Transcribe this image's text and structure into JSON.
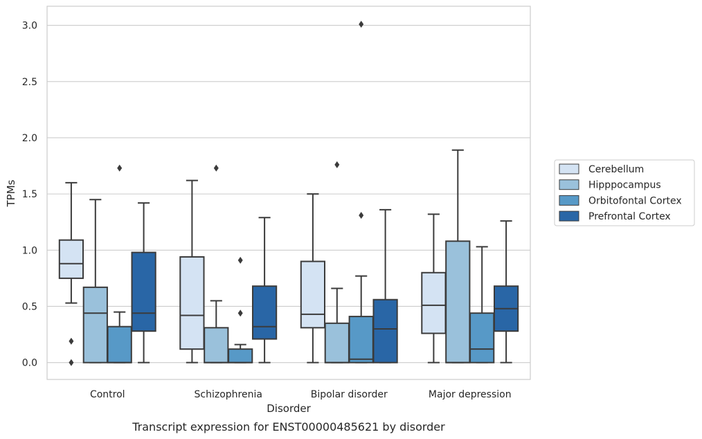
{
  "chart_data": {
    "type": "box",
    "title": "",
    "caption": "Transcript expression for ENST00000485621 by disorder",
    "xlabel": "Disorder",
    "ylabel": "TPMs",
    "ylim": [
      -0.15,
      3.17
    ],
    "yticks": [
      "0.0",
      "0.5",
      "1.0",
      "1.5",
      "2.0",
      "2.5",
      "3.0"
    ],
    "grid": "horizontal",
    "legend_position": "right",
    "categories": [
      "Control",
      "Schizophrenia",
      "Bipolar disorder",
      "Major depression"
    ],
    "series": [
      {
        "name": "Cerebellum",
        "color": "#d4e3f3",
        "boxes": [
          {
            "whisker_low": 0.53,
            "q1": 0.75,
            "median": 0.88,
            "q3": 1.09,
            "whisker_high": 1.6,
            "outliers": [
              0.19,
              0.0
            ]
          },
          {
            "whisker_low": 0.0,
            "q1": 0.12,
            "median": 0.42,
            "q3": 0.94,
            "whisker_high": 1.62,
            "outliers": []
          },
          {
            "whisker_low": 0.0,
            "q1": 0.31,
            "median": 0.43,
            "q3": 0.9,
            "whisker_high": 1.5,
            "outliers": []
          },
          {
            "whisker_low": 0.0,
            "q1": 0.26,
            "median": 0.51,
            "q3": 0.8,
            "whisker_high": 1.32,
            "outliers": []
          }
        ]
      },
      {
        "name": "Hipppocampus",
        "color": "#9ac1db",
        "boxes": [
          {
            "whisker_low": 0.0,
            "q1": 0.0,
            "median": 0.44,
            "q3": 0.67,
            "whisker_high": 1.45,
            "outliers": []
          },
          {
            "whisker_low": 0.0,
            "q1": 0.0,
            "median": 0.0,
            "q3": 0.31,
            "whisker_high": 0.55,
            "outliers": [
              1.73
            ]
          },
          {
            "whisker_low": 0.0,
            "q1": 0.0,
            "median": 0.0,
            "q3": 0.35,
            "whisker_high": 0.66,
            "outliers": [
              1.76
            ]
          },
          {
            "whisker_low": 0.0,
            "q1": 0.0,
            "median": 0.0,
            "q3": 1.08,
            "whisker_high": 1.89,
            "outliers": []
          }
        ]
      },
      {
        "name": "Orbitofontal Cortex",
        "color": "#5799c7",
        "boxes": [
          {
            "whisker_low": 0.0,
            "q1": 0.0,
            "median": 0.0,
            "q3": 0.32,
            "whisker_high": 0.45,
            "outliers": [
              1.73
            ]
          },
          {
            "whisker_low": 0.0,
            "q1": 0.0,
            "median": 0.0,
            "q3": 0.12,
            "whisker_high": 0.16,
            "outliers": [
              0.91,
              0.44
            ]
          },
          {
            "whisker_low": 0.0,
            "q1": 0.0,
            "median": 0.03,
            "q3": 0.41,
            "whisker_high": 0.77,
            "outliers": [
              1.31,
              3.01
            ]
          },
          {
            "whisker_low": 0.0,
            "q1": 0.0,
            "median": 0.12,
            "q3": 0.44,
            "whisker_high": 1.03,
            "outliers": []
          }
        ]
      },
      {
        "name": "Prefrontal Cortex",
        "color": "#2966a6",
        "boxes": [
          {
            "whisker_low": 0.0,
            "q1": 0.28,
            "median": 0.44,
            "q3": 0.98,
            "whisker_high": 1.42,
            "outliers": []
          },
          {
            "whisker_low": 0.0,
            "q1": 0.21,
            "median": 0.32,
            "q3": 0.68,
            "whisker_high": 1.29,
            "outliers": []
          },
          {
            "whisker_low": 0.0,
            "q1": 0.0,
            "median": 0.3,
            "q3": 0.56,
            "whisker_high": 1.36,
            "outliers": []
          },
          {
            "whisker_low": 0.0,
            "q1": 0.28,
            "median": 0.48,
            "q3": 0.68,
            "whisker_high": 1.26,
            "outliers": []
          }
        ]
      }
    ]
  }
}
